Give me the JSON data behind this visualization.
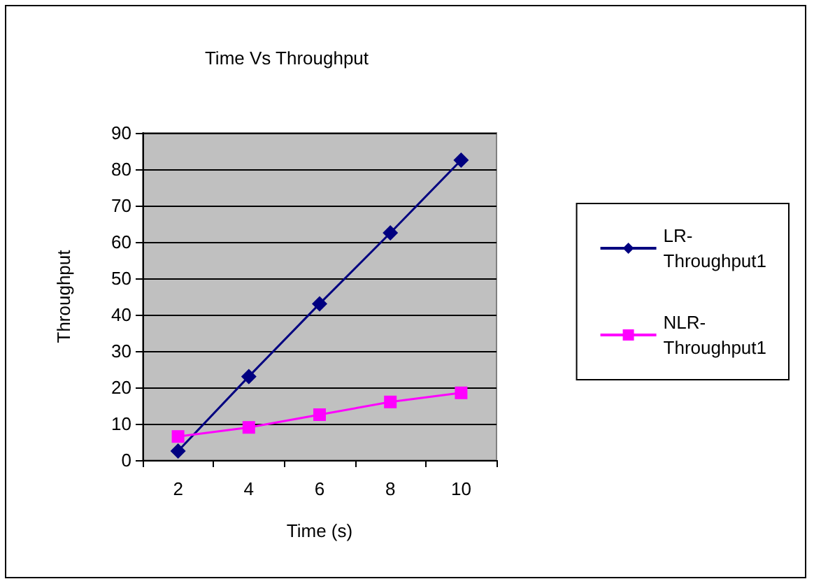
{
  "chart_data": {
    "type": "line",
    "title": "Time Vs Throughput",
    "xlabel": "Time (s)",
    "ylabel": "Throughput",
    "categories": [
      "2",
      "4",
      "6",
      "8",
      "10"
    ],
    "series": [
      {
        "name": "LR-Throughput1",
        "color": "#000080",
        "marker": "diamond",
        "values": [
          2.5,
          23,
          43,
          62.5,
          82.5
        ]
      },
      {
        "name": "NLR-Throughput1",
        "color": "#ff00ff",
        "marker": "square",
        "values": [
          6.5,
          9,
          12.5,
          16,
          18.5
        ]
      }
    ],
    "ylim": [
      0,
      90
    ],
    "yticks": [
      0,
      10,
      20,
      30,
      40,
      50,
      60,
      70,
      80,
      90
    ],
    "grid": "y",
    "legend": "right",
    "line_style": "solid"
  }
}
